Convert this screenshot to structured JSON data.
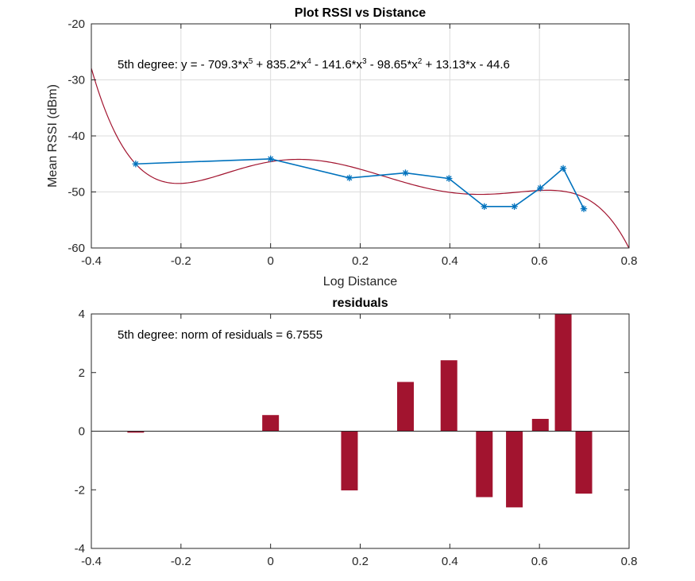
{
  "chart_data": [
    {
      "type": "line",
      "title": "Plot RSSI vs Distance",
      "xlabel": "Log Distance",
      "ylabel": "Mean RSSI (dBm)",
      "xlim": [
        -0.4,
        0.8
      ],
      "ylim": [
        -60,
        -20
      ],
      "x_ticks": [
        -0.4,
        -0.2,
        0,
        0.2,
        0.4,
        0.6,
        0.8
      ],
      "x_tick_labels": [
        "-0.4",
        "-0.2",
        "0",
        "0.2",
        "0.4",
        "0.6",
        "0.8"
      ],
      "y_ticks": [
        -60,
        -50,
        -40,
        -30,
        -20
      ],
      "y_tick_labels": [
        "-60",
        "-50",
        "-40",
        "-30",
        "-20"
      ],
      "grid": true,
      "annotation": {
        "prefix": "5th degree:  y = - 709.3*x",
        "parts": [
          {
            "text": "5",
            "sup": true
          },
          {
            "text": " + 835.2*x",
            "sup": false
          },
          {
            "text": "4",
            "sup": true
          },
          {
            "text": " - 141.6*x",
            "sup": false
          },
          {
            "text": "3",
            "sup": true
          },
          {
            "text": " - 98.65*x",
            "sup": false
          },
          {
            "text": "2",
            "sup": true
          },
          {
            "text": " + 13.13*x - 44.6",
            "sup": false
          }
        ]
      },
      "series": [
        {
          "marker": "asterisk",
          "color": "#0072bd",
          "x": [
            -0.301,
            0.0,
            0.176,
            0.301,
            0.398,
            0.477,
            0.544,
            0.602,
            0.653,
            0.699
          ],
          "y": [
            -45.0,
            -44.1,
            -47.5,
            -46.6,
            -47.6,
            -52.6,
            -52.6,
            -49.3,
            -45.8,
            -53.0
          ]
        },
        {
          "type": "polyfit",
          "color": "#a2142f",
          "coefficients": [
            -709.3,
            835.2,
            -141.6,
            -98.65,
            13.13,
            -44.6
          ]
        }
      ]
    },
    {
      "type": "bar",
      "title": "residuals",
      "xlabel": "",
      "ylabel": "",
      "xlim": [
        -0.4,
        0.8
      ],
      "ylim": [
        -4,
        4
      ],
      "x_ticks": [
        -0.4,
        -0.2,
        0,
        0.2,
        0.4,
        0.6,
        0.8
      ],
      "x_tick_labels": [
        "-0.4",
        "-0.2",
        "0",
        "0.2",
        "0.4",
        "0.6",
        "0.8"
      ],
      "y_ticks": [
        -4,
        -2,
        0,
        2,
        4
      ],
      "y_tick_labels": [
        "-4",
        "-2",
        "0",
        "2",
        "4"
      ],
      "grid": false,
      "annotation": "5th degree: norm of residuals = 6.7555",
      "color": "#a2142f",
      "x": [
        -0.301,
        0.0,
        0.176,
        0.301,
        0.398,
        0.477,
        0.544,
        0.602,
        0.653,
        0.699
      ],
      "values": [
        -0.05,
        0.55,
        -2.02,
        1.68,
        2.42,
        -2.25,
        -2.6,
        0.42,
        4.0,
        -2.13
      ]
    }
  ]
}
